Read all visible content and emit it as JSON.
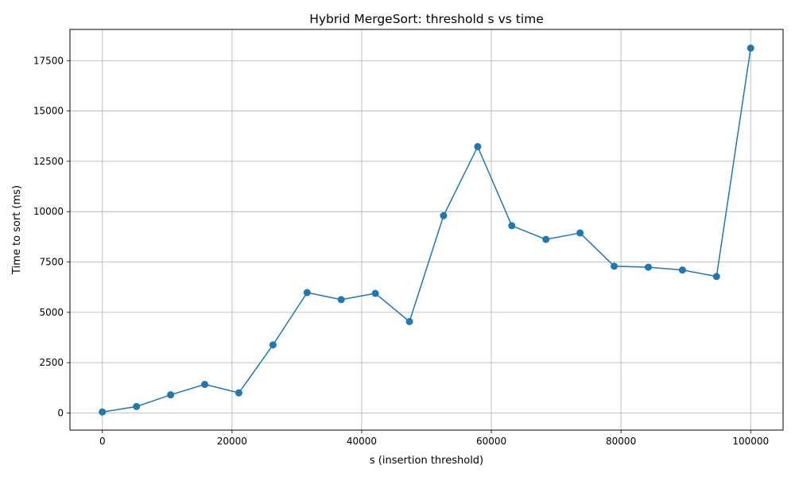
{
  "chart_data": {
    "type": "line",
    "title": "Hybrid MergeSort: threshold s vs time",
    "xlabel": "s (insertion threshold)",
    "ylabel": "Time to sort (ms)",
    "xlim": [
      -5000,
      105000
    ],
    "ylim": [
      -850,
      19050
    ],
    "xticks": [
      0,
      20000,
      40000,
      60000,
      80000,
      100000
    ],
    "xtick_labels": [
      "0",
      "20000",
      "40000",
      "60000",
      "80000",
      "100000"
    ],
    "yticks": [
      0,
      2500,
      5000,
      7500,
      10000,
      12500,
      15000,
      17500
    ],
    "ytick_labels": [
      "0",
      "2500",
      "5000",
      "7500",
      "10000",
      "12500",
      "15000",
      "17500"
    ],
    "grid": true,
    "marker": "circle",
    "color": "#1f77b4",
    "series": [
      {
        "x": [
          1,
          5264,
          10527,
          15790,
          21053,
          26316,
          31579,
          36843,
          42106,
          47369,
          52632,
          57895,
          63158,
          68421,
          73685,
          78948,
          84211,
          89474,
          94737,
          100000
        ],
        "y": [
          50,
          320,
          900,
          1420,
          1000,
          3380,
          5980,
          5630,
          5940,
          4540,
          9800,
          13230,
          9300,
          8620,
          8940,
          7290,
          7240,
          7100,
          6780,
          18120
        ]
      }
    ]
  }
}
